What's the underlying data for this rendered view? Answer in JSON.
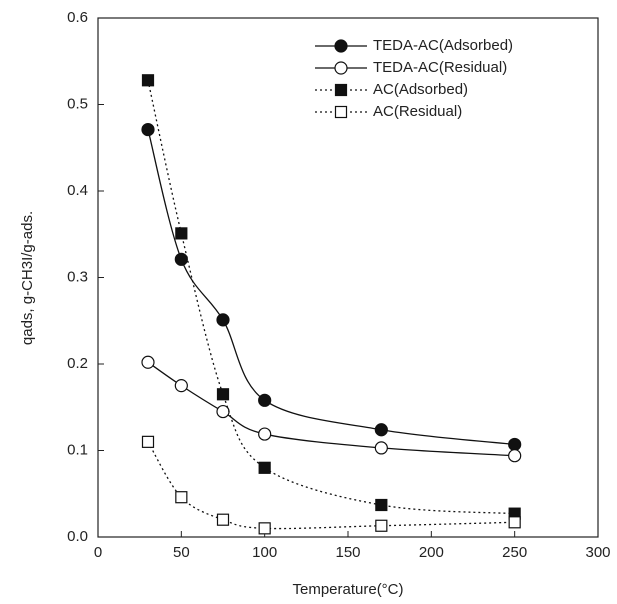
{
  "chart_data": {
    "type": "line",
    "x_label": "Temperature(°C)",
    "y_label": "qads, g-CH3I/g-ads.",
    "xlim": [
      0,
      300
    ],
    "xticks": [
      0,
      50,
      100,
      150,
      200,
      250,
      300
    ],
    "ylim": [
      0,
      0.6
    ],
    "yticks": [
      {
        "value": 0,
        "label": "0.0"
      },
      0.1,
      0.2,
      0.3,
      0.4,
      0.5,
      0.6
    ],
    "legend": "upper right",
    "series": [
      {
        "name": "TEDA-AC(Adsorbed)",
        "color": "#111",
        "marker": "circle",
        "filled": true,
        "dash": "solid",
        "x": [
          30,
          50,
          75,
          100,
          170,
          250
        ],
        "values": [
          0.471,
          0.321,
          0.251,
          0.158,
          0.124,
          0.107
        ]
      },
      {
        "name": "TEDA-AC(Residual)",
        "color": "#111",
        "marker": "circle",
        "filled": false,
        "dash": "solid",
        "x": [
          30,
          50,
          75,
          100,
          170,
          250
        ],
        "values": [
          0.202,
          0.175,
          0.145,
          0.119,
          0.103,
          0.094
        ]
      },
      {
        "name": "AC(Adsorbed)",
        "color": "#111",
        "marker": "square",
        "filled": true,
        "dash": "dotted",
        "x": [
          30,
          50,
          75,
          100,
          170,
          250
        ],
        "values": [
          0.528,
          0.351,
          0.165,
          0.08,
          0.037,
          0.027
        ]
      },
      {
        "name": "AC(Residual)",
        "color": "#111",
        "marker": "square",
        "filled": false,
        "dash": "dotted",
        "x": [
          30,
          50,
          75,
          100,
          170,
          250
        ],
        "values": [
          0.11,
          0.046,
          0.02,
          0.01,
          0.013,
          0.017
        ]
      }
    ]
  }
}
